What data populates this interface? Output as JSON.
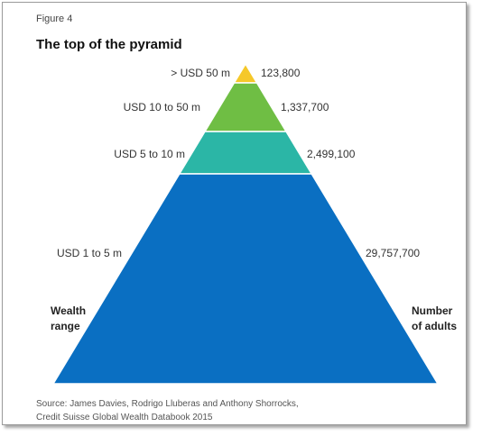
{
  "figure_label": "Figure 4",
  "title": "The top of the pyramid",
  "wealth_range_label": [
    "Wealth",
    "range"
  ],
  "number_of_adults_label": [
    "Number",
    "of adults"
  ],
  "source": [
    "Source: James Davies, Rodrigo Lluberas and Anthony Shorrocks,",
    "Credit Suisse Global Wealth Databook 2015"
  ],
  "chart_data": {
    "type": "pyramid",
    "title": "The top of the pyramid",
    "tiers": [
      {
        "range": "> USD 50 m",
        "adults_label": "123,800",
        "adults": 123800,
        "color": "#f5c82a"
      },
      {
        "range": "USD 10 to 50 m",
        "adults_label": "1,337,700",
        "adults": 1337700,
        "color": "#6fbe44"
      },
      {
        "range": "USD 5 to 10 m",
        "adults_label": "2,499,100",
        "adults": 2499100,
        "color": "#2bb6a6"
      },
      {
        "range": "USD 1 to 5 m",
        "adults_label": "29,757,700",
        "adults": 29757700,
        "color": "#0a6fc2"
      }
    ]
  }
}
